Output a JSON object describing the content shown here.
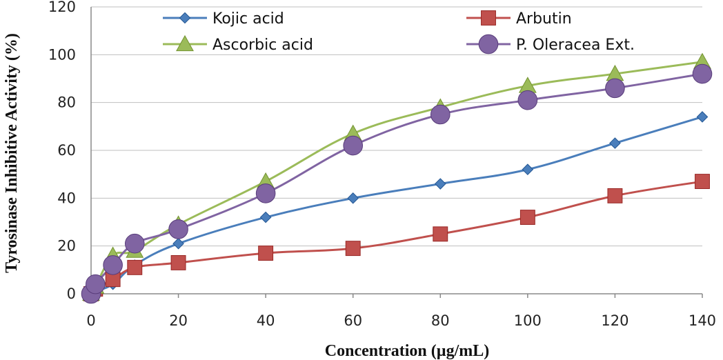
{
  "chart_data": {
    "type": "line",
    "title": "",
    "xlabel": "Concentration (µg/mL)",
    "ylabel": "Tyrosinase Inhibitive Activity (%)",
    "xlim": [
      0,
      140
    ],
    "ylim": [
      0,
      120
    ],
    "x_ticks": [
      0,
      20,
      40,
      60,
      80,
      100,
      120,
      140
    ],
    "y_ticks": [
      0,
      20,
      40,
      60,
      80,
      100,
      120
    ],
    "grid": "horizontal",
    "legend_position": "top",
    "series": [
      {
        "name": "Kojic acid",
        "color": "#4A7EBB",
        "marker": "diamond",
        "x": [
          0,
          1,
          5,
          10,
          20,
          40,
          60,
          80,
          100,
          120,
          140
        ],
        "y": [
          0,
          1,
          4,
          12,
          21,
          32,
          40,
          46,
          52,
          63,
          74
        ]
      },
      {
        "name": "Arbutin",
        "color": "#C0504D",
        "marker": "square",
        "x": [
          0,
          1,
          5,
          10,
          20,
          40,
          60,
          80,
          100,
          120,
          140
        ],
        "y": [
          0,
          2,
          6,
          11,
          13,
          17,
          19,
          25,
          32,
          41,
          47
        ]
      },
      {
        "name": "Ascorbic acid",
        "color": "#9BBB59",
        "marker": "triangle",
        "x": [
          0,
          1,
          5,
          10,
          20,
          40,
          60,
          80,
          100,
          120,
          140
        ],
        "y": [
          0,
          3,
          16,
          18,
          29,
          47,
          67,
          78,
          87,
          92,
          97
        ]
      },
      {
        "name": "P. Oleracea Ext.",
        "color": "#8064A2",
        "marker": "circle",
        "x": [
          0,
          1,
          5,
          10,
          20,
          40,
          60,
          80,
          100,
          120,
          140
        ],
        "y": [
          0,
          4,
          12,
          21,
          27,
          42,
          62,
          75,
          81,
          86,
          92
        ]
      }
    ]
  }
}
